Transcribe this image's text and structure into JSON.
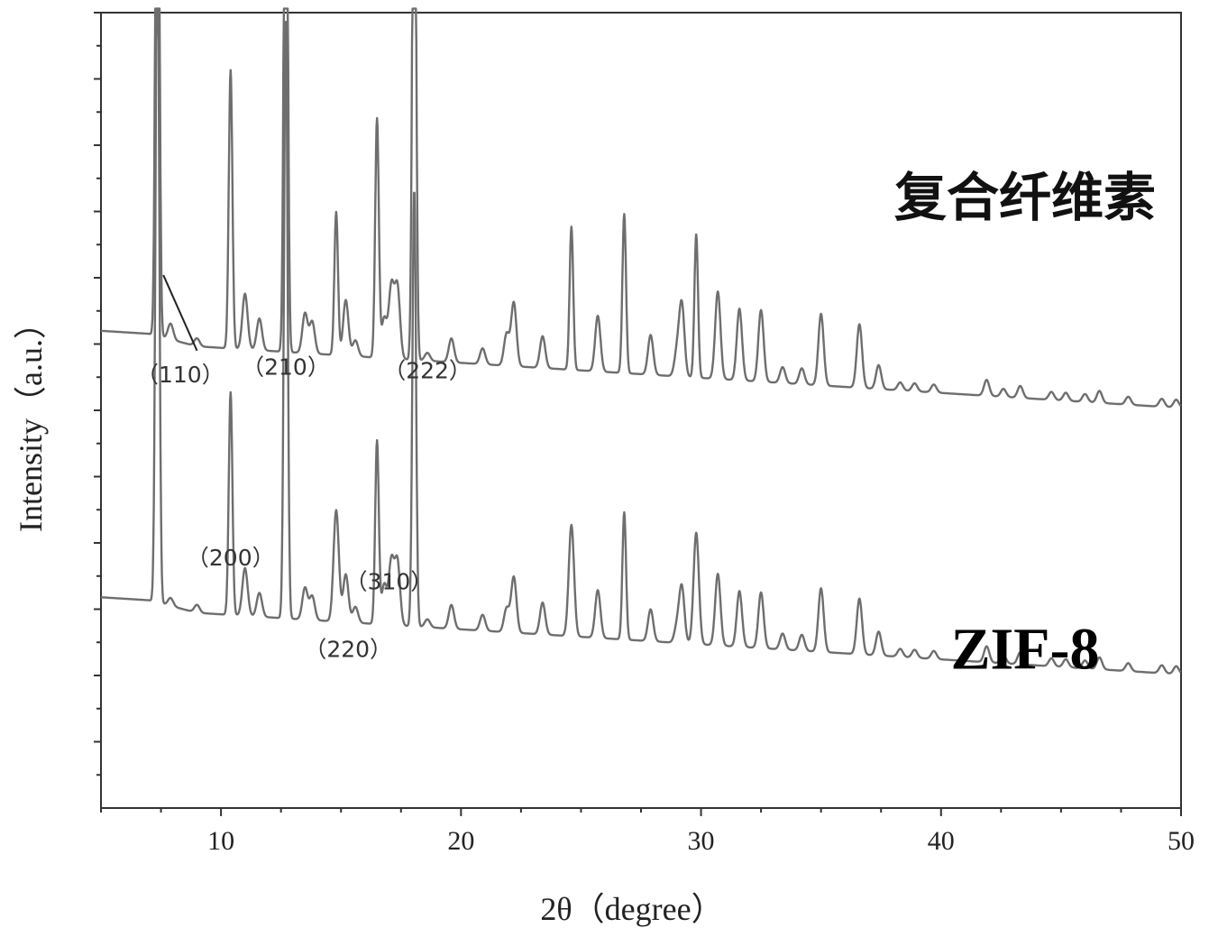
{
  "chart_data": {
    "type": "line",
    "title": "",
    "xlabel": "2θ（degree）",
    "ylabel": "Intensity（a.u.）",
    "xlim": [
      5,
      50
    ],
    "x_ticks": [
      10,
      20,
      30,
      40,
      50
    ],
    "y_ticks_labeled": false,
    "grid": false,
    "line_color": "#6e6e6e",
    "series": [
      {
        "name": "复合纤维素",
        "baseline": 0.6,
        "end_level": 0.515,
        "peaks": [
          [
            7.35,
            0.92
          ],
          [
            7.9,
            0.02
          ],
          [
            9.0,
            0.01
          ],
          [
            10.4,
            0.35
          ],
          [
            11.0,
            0.07
          ],
          [
            11.6,
            0.04
          ],
          [
            12.7,
            0.88
          ],
          [
            13.5,
            0.05
          ],
          [
            13.8,
            0.04
          ],
          [
            14.8,
            0.18
          ],
          [
            15.2,
            0.07
          ],
          [
            15.6,
            0.02
          ],
          [
            16.5,
            0.3
          ],
          [
            16.8,
            0.05
          ],
          [
            17.1,
            0.09
          ],
          [
            17.35,
            0.09
          ],
          [
            18.05,
            0.82
          ],
          [
            18.6,
            0.01
          ],
          [
            19.6,
            0.03
          ],
          [
            20.9,
            0.02
          ],
          [
            21.9,
            0.04
          ],
          [
            22.2,
            0.08
          ],
          [
            23.4,
            0.04
          ],
          [
            24.6,
            0.18
          ],
          [
            25.7,
            0.07
          ],
          [
            26.8,
            0.2
          ],
          [
            27.9,
            0.05
          ],
          [
            29.0,
            0.03
          ],
          [
            29.2,
            0.09
          ],
          [
            29.8,
            0.18
          ],
          [
            30.7,
            0.11
          ],
          [
            31.6,
            0.09
          ],
          [
            32.5,
            0.09
          ],
          [
            33.4,
            0.02
          ],
          [
            34.2,
            0.02
          ],
          [
            35.0,
            0.09
          ],
          [
            36.6,
            0.08
          ],
          [
            37.4,
            0.03
          ],
          [
            38.3,
            0.01
          ],
          [
            38.9,
            0.01
          ],
          [
            39.7,
            0.01
          ],
          [
            41.9,
            0.02
          ],
          [
            42.6,
            0.01
          ],
          [
            43.3,
            0.015
          ],
          [
            44.6,
            0.01
          ],
          [
            45.2,
            0.01
          ],
          [
            46.0,
            0.01
          ],
          [
            46.6,
            0.015
          ],
          [
            47.8,
            0.01
          ],
          [
            49.2,
            0.01
          ],
          [
            49.8,
            0.01
          ]
        ]
      },
      {
        "name": "ZIF-8",
        "baseline": 0.265,
        "end_level": 0.18,
        "peaks": [
          [
            7.35,
            0.88
          ],
          [
            7.9,
            0.01
          ],
          [
            9.0,
            0.01
          ],
          [
            10.4,
            0.28
          ],
          [
            11.0,
            0.06
          ],
          [
            11.6,
            0.03
          ],
          [
            12.7,
            0.75
          ],
          [
            13.5,
            0.04
          ],
          [
            13.8,
            0.03
          ],
          [
            14.8,
            0.14
          ],
          [
            15.2,
            0.06
          ],
          [
            15.6,
            0.02
          ],
          [
            16.5,
            0.23
          ],
          [
            16.8,
            0.05
          ],
          [
            17.1,
            0.08
          ],
          [
            17.35,
            0.08
          ],
          [
            18.05,
            0.55
          ],
          [
            18.6,
            0.01
          ],
          [
            19.6,
            0.03
          ],
          [
            20.9,
            0.02
          ],
          [
            21.9,
            0.03
          ],
          [
            22.2,
            0.07
          ],
          [
            23.4,
            0.04
          ],
          [
            24.6,
            0.14
          ],
          [
            25.7,
            0.06
          ],
          [
            26.8,
            0.16
          ],
          [
            27.9,
            0.04
          ],
          [
            29.0,
            0.02
          ],
          [
            29.2,
            0.07
          ],
          [
            29.8,
            0.14
          ],
          [
            30.7,
            0.09
          ],
          [
            31.6,
            0.07
          ],
          [
            32.5,
            0.07
          ],
          [
            33.4,
            0.02
          ],
          [
            34.2,
            0.02
          ],
          [
            35.0,
            0.08
          ],
          [
            36.6,
            0.07
          ],
          [
            37.4,
            0.03
          ],
          [
            38.3,
            0.01
          ],
          [
            38.9,
            0.01
          ],
          [
            39.7,
            0.01
          ],
          [
            41.9,
            0.02
          ],
          [
            42.6,
            0.01
          ],
          [
            43.3,
            0.015
          ],
          [
            44.6,
            0.01
          ],
          [
            45.2,
            0.01
          ],
          [
            46.0,
            0.01
          ],
          [
            46.6,
            0.015
          ],
          [
            47.8,
            0.01
          ],
          [
            49.2,
            0.01
          ],
          [
            49.8,
            0.01
          ]
        ]
      }
    ],
    "annotations": [
      {
        "text": "（110）",
        "x": 8.3,
        "y": 0.535,
        "pointer_to": [
          7.6,
          0.67
        ],
        "pointer_from": [
          9.0,
          0.575
        ]
      },
      {
        "text": "（210）",
        "x": 12.7,
        "y": 0.545
      },
      {
        "text": "（222）",
        "x": 18.6,
        "y": 0.54
      },
      {
        "text": "（200）",
        "x": 10.4,
        "y": 0.305
      },
      {
        "text": "（310）",
        "x": 17.0,
        "y": 0.275
      },
      {
        "text": "（220）",
        "x": 15.3,
        "y": 0.19
      }
    ],
    "series_labels": [
      {
        "text": "复合纤维素",
        "x": 43.5,
        "y": 0.745
      },
      {
        "text": "ZIF-8",
        "x": 43.5,
        "y": 0.175
      }
    ]
  }
}
